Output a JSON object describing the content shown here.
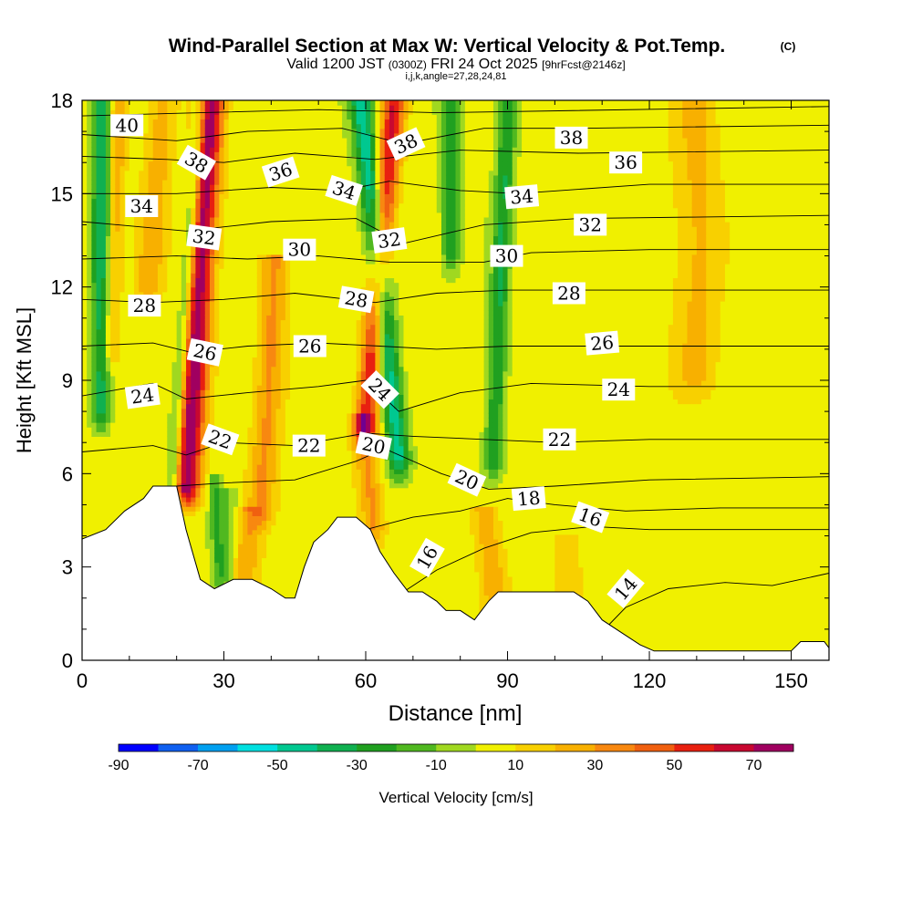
{
  "chart_data": {
    "type": "heatmap",
    "title": "Wind-Parallel Section at Max W: Vertical Velocity & Pot.Temp.",
    "title_mark": "(C)",
    "subtitle_main": "Valid 1200 JST",
    "subtitle_utc": "(0300Z)",
    "subtitle_date": "FRI 24 Oct 2025",
    "subtitle_fcst": "[9hrFcst@2146z]",
    "subtitle_params": "i,j,k,angle=27,28,24,81",
    "xlabel": "Distance [nm]",
    "ylabel": "Height [Kft MSL]",
    "xlim": [
      0,
      158
    ],
    "ylim": [
      0,
      18
    ],
    "x_ticks": [
      0,
      30,
      60,
      90,
      120,
      150
    ],
    "y_ticks": [
      0,
      3,
      6,
      9,
      12,
      15,
      18
    ],
    "colorbar": {
      "label": "Vertical Velocity [cm/s]",
      "tick_labels": [
        "-90",
        "-70",
        "-50",
        "-30",
        "-10",
        "10",
        "30",
        "50",
        "70"
      ],
      "bounds": [
        -90,
        -80,
        -70,
        -60,
        -50,
        -40,
        -30,
        -20,
        -10,
        0,
        10,
        20,
        30,
        40,
        50,
        60,
        70,
        80
      ],
      "colors": [
        "#0000ff",
        "#1060f0",
        "#00a0f0",
        "#00e0e0",
        "#00c890",
        "#10b050",
        "#20a020",
        "#50b820",
        "#a0d820",
        "#f0f000",
        "#f8d000",
        "#f8b000",
        "#f88810",
        "#f06010",
        "#e82010",
        "#c80830",
        "#a00060",
        "#700090"
      ]
    },
    "terrain": [
      [
        0,
        3.9
      ],
      [
        5,
        4.2
      ],
      [
        9,
        4.8
      ],
      [
        13,
        5.2
      ],
      [
        15,
        5.6
      ],
      [
        20,
        5.6
      ],
      [
        22,
        4.2
      ],
      [
        25,
        2.6
      ],
      [
        28,
        2.3
      ],
      [
        32,
        2.6
      ],
      [
        36,
        2.6
      ],
      [
        40,
        2.3
      ],
      [
        43,
        2.0
      ],
      [
        45,
        2.0
      ],
      [
        47,
        3.0
      ],
      [
        49,
        3.8
      ],
      [
        52,
        4.2
      ],
      [
        54,
        4.6
      ],
      [
        58,
        4.6
      ],
      [
        61,
        4.2
      ],
      [
        63,
        3.5
      ],
      [
        66,
        2.8
      ],
      [
        69,
        2.2
      ],
      [
        72,
        2.2
      ],
      [
        75,
        1.9
      ],
      [
        77,
        1.6
      ],
      [
        80,
        1.6
      ],
      [
        83,
        1.3
      ],
      [
        86,
        1.9
      ],
      [
        88,
        2.2
      ],
      [
        92,
        2.2
      ],
      [
        98,
        2.2
      ],
      [
        104,
        2.2
      ],
      [
        107,
        1.9
      ],
      [
        110,
        1.3
      ],
      [
        114,
        0.9
      ],
      [
        118,
        0.5
      ],
      [
        121,
        0.3
      ],
      [
        132,
        0.3
      ],
      [
        143,
        0.3
      ],
      [
        150,
        0.3
      ],
      [
        152,
        0.6
      ],
      [
        157,
        0.6
      ],
      [
        158,
        0.4
      ]
    ],
    "updraft_bands": [
      {
        "peak": 75,
        "half_width": 3.0,
        "x_top": 27,
        "x_bottom": 22,
        "z_top": 18,
        "z_bottom": 5.5
      },
      {
        "peak": 55,
        "half_width": 2.4,
        "x_top": 66,
        "x_bottom": 60,
        "z_top": 18,
        "z_bottom": 7.5
      },
      {
        "peak": 28,
        "half_width": 2.5,
        "x_top": 59,
        "x_bottom": 62,
        "z_top": 8,
        "z_bottom": 4.2
      },
      {
        "peak": 28,
        "half_width": 3.0,
        "x_top": 41,
        "x_bottom": 38,
        "z_top": 13,
        "z_bottom": 5
      },
      {
        "peak": 24,
        "half_width": 3.0,
        "x_top": 85,
        "x_bottom": 88,
        "z_top": 5,
        "z_bottom": 1.5
      },
      {
        "peak": 22,
        "half_width": 3.0,
        "x_top": 36,
        "x_bottom": 34,
        "z_top": 5,
        "z_bottom": 2.3
      },
      {
        "peak": 22,
        "half_width": 1.8,
        "x_top": 8,
        "x_bottom": 6,
        "z_top": 18,
        "z_bottom": 10
      },
      {
        "peak": 22,
        "half_width": 3.0,
        "x_top": 17,
        "x_bottom": 14,
        "z_top": 18,
        "z_bottom": 12
      },
      {
        "peak": 18,
        "half_width": 5.0,
        "x_top": 130,
        "x_bottom": 130,
        "z_top": 18,
        "z_bottom": 9
      },
      {
        "peak": 15,
        "half_width": 3.0,
        "x_top": 103,
        "x_bottom": 103,
        "z_top": 4,
        "z_bottom": 1.5
      },
      {
        "peak": -40,
        "half_width": 2.0,
        "x_top": 4,
        "x_bottom": 4,
        "z_top": 18,
        "z_bottom": 8
      },
      {
        "peak": -38,
        "half_width": 1.6,
        "x_top": 25,
        "x_bottom": 19,
        "z_top": 18,
        "z_bottom": 5.2
      },
      {
        "peak": -50,
        "half_width": 2.4,
        "x_top": 59,
        "x_bottom": 67,
        "z_top": 18,
        "z_bottom": 6.5
      },
      {
        "peak": -30,
        "half_width": 2.0,
        "x_top": 78,
        "x_bottom": 78,
        "z_top": 18,
        "z_bottom": 13
      },
      {
        "peak": -34,
        "half_width": 2.0,
        "x_top": 90,
        "x_bottom": 87,
        "z_top": 18,
        "z_bottom": 6.5
      },
      {
        "peak": -22,
        "half_width": 1.4,
        "x_top": 28,
        "x_bottom": 29,
        "z_top": 6,
        "z_bottom": 2.8
      },
      {
        "peak": -14,
        "half_width": 2.0,
        "x_top": 31,
        "x_bottom": 31,
        "z_top": 5.5,
        "z_bottom": 2.5
      }
    ],
    "theta_surfaces": [
      {
        "theta": 14,
        "points": [
          [
            108,
            0.6
          ],
          [
            115,
            1.7
          ],
          [
            124,
            2.3
          ],
          [
            136,
            2.5
          ],
          [
            146,
            2.4
          ],
          [
            158,
            2.8
          ]
        ]
      },
      {
        "theta": 16,
        "points": [
          [
            66,
            2.0
          ],
          [
            75,
            2.9
          ],
          [
            85,
            3.6
          ],
          [
            95,
            4.1
          ],
          [
            108,
            4.3
          ],
          [
            120,
            4.2
          ],
          [
            135,
            4.2
          ],
          [
            158,
            4.2
          ]
        ]
      },
      {
        "theta": 18,
        "points": [
          [
            60,
            4.2
          ],
          [
            70,
            4.6
          ],
          [
            80,
            4.8
          ],
          [
            90,
            5.2
          ],
          [
            100,
            5.0
          ],
          [
            115,
            4.8
          ],
          [
            135,
            4.9
          ],
          [
            158,
            4.9
          ]
        ]
      },
      {
        "theta": 20,
        "points": [
          [
            20,
            5.6
          ],
          [
            30,
            5.7
          ],
          [
            45,
            5.8
          ],
          [
            58,
            6.4
          ],
          [
            64,
            6.8
          ],
          [
            76,
            6.0
          ],
          [
            86,
            5.5
          ],
          [
            100,
            5.6
          ],
          [
            120,
            5.8
          ],
          [
            158,
            5.9
          ]
        ]
      },
      {
        "theta": 22,
        "points": [
          [
            0,
            6.7
          ],
          [
            15,
            6.9
          ],
          [
            22,
            6.6
          ],
          [
            30,
            7.0
          ],
          [
            45,
            6.9
          ],
          [
            60,
            7.3
          ],
          [
            70,
            7.2
          ],
          [
            85,
            7.1
          ],
          [
            100,
            7.0
          ],
          [
            120,
            7.1
          ],
          [
            158,
            7.1
          ]
        ]
      },
      {
        "theta": 24,
        "points": [
          [
            0,
            8.5
          ],
          [
            15,
            8.9
          ],
          [
            22,
            8.4
          ],
          [
            35,
            8.6
          ],
          [
            50,
            8.8
          ],
          [
            60,
            9.0
          ],
          [
            67,
            8.0
          ],
          [
            80,
            8.6
          ],
          [
            95,
            8.9
          ],
          [
            120,
            8.8
          ],
          [
            158,
            8.8
          ]
        ]
      },
      {
        "theta": 26,
        "points": [
          [
            0,
            10.1
          ],
          [
            15,
            10.2
          ],
          [
            23,
            9.9
          ],
          [
            35,
            10.1
          ],
          [
            50,
            10.2
          ],
          [
            63,
            10.1
          ],
          [
            75,
            10.0
          ],
          [
            90,
            10.1
          ],
          [
            120,
            10.1
          ],
          [
            158,
            10.1
          ]
        ]
      },
      {
        "theta": 28,
        "points": [
          [
            0,
            11.6
          ],
          [
            15,
            11.5
          ],
          [
            30,
            11.6
          ],
          [
            45,
            11.8
          ],
          [
            62,
            11.5
          ],
          [
            75,
            11.8
          ],
          [
            90,
            11.9
          ],
          [
            120,
            11.9
          ],
          [
            158,
            11.9
          ]
        ]
      },
      {
        "theta": 30,
        "points": [
          [
            0,
            12.9
          ],
          [
            20,
            13.0
          ],
          [
            35,
            12.9
          ],
          [
            50,
            13.0
          ],
          [
            65,
            12.8
          ],
          [
            85,
            12.8
          ],
          [
            95,
            13.1
          ],
          [
            120,
            13.2
          ],
          [
            158,
            13.2
          ]
        ]
      },
      {
        "theta": 32,
        "points": [
          [
            0,
            14.1
          ],
          [
            22,
            13.8
          ],
          [
            40,
            14.1
          ],
          [
            58,
            14.2
          ],
          [
            68,
            13.4
          ],
          [
            85,
            14.0
          ],
          [
            105,
            14.2
          ],
          [
            158,
            14.3
          ]
        ]
      },
      {
        "theta": 34,
        "points": [
          [
            0,
            15.0
          ],
          [
            20,
            15.0
          ],
          [
            40,
            15.2
          ],
          [
            55,
            15.1
          ],
          [
            65,
            15.4
          ],
          [
            80,
            15.1
          ],
          [
            92,
            15.0
          ],
          [
            120,
            15.3
          ],
          [
            158,
            15.3
          ]
        ]
      },
      {
        "theta": 36,
        "points": [
          [
            0,
            16.2
          ],
          [
            18,
            16.1
          ],
          [
            30,
            16.0
          ],
          [
            45,
            16.3
          ],
          [
            62,
            16.1
          ],
          [
            80,
            16.4
          ],
          [
            105,
            16.3
          ],
          [
            158,
            16.4
          ]
        ]
      },
      {
        "theta": 38,
        "points": [
          [
            0,
            16.9
          ],
          [
            20,
            16.7
          ],
          [
            35,
            17.0
          ],
          [
            55,
            17.1
          ],
          [
            68,
            16.6
          ],
          [
            85,
            17.1
          ],
          [
            105,
            17.1
          ],
          [
            158,
            17.2
          ]
        ]
      },
      {
        "theta": 40,
        "points": [
          [
            0,
            17.5
          ],
          [
            25,
            17.6
          ],
          [
            50,
            17.7
          ],
          [
            75,
            17.6
          ],
          [
            158,
            17.8
          ]
        ]
      }
    ],
    "contour_labels": [
      {
        "text": "40",
        "x": 9.5,
        "z": 17.2,
        "angle": 0
      },
      {
        "text": "38",
        "x": 24.2,
        "z": 16.0,
        "angle": 30
      },
      {
        "text": "38",
        "x": 68.5,
        "z": 16.6,
        "angle": -25
      },
      {
        "text": "38",
        "x": 103.5,
        "z": 16.8,
        "angle": 0
      },
      {
        "text": "36",
        "x": 42.0,
        "z": 15.7,
        "angle": -18
      },
      {
        "text": "36",
        "x": 115.0,
        "z": 16.0,
        "angle": 0
      },
      {
        "text": "34",
        "x": 12.6,
        "z": 14.6,
        "angle": 0
      },
      {
        "text": "34",
        "x": 55.4,
        "z": 15.1,
        "angle": 18
      },
      {
        "text": "34",
        "x": 93.0,
        "z": 14.9,
        "angle": -5
      },
      {
        "text": "32",
        "x": 25.8,
        "z": 13.6,
        "angle": 8
      },
      {
        "text": "32",
        "x": 65.0,
        "z": 13.5,
        "angle": -8
      },
      {
        "text": "32",
        "x": 107.5,
        "z": 14.0,
        "angle": 0
      },
      {
        "text": "30",
        "x": 46.0,
        "z": 13.2,
        "angle": 0
      },
      {
        "text": "30",
        "x": 89.8,
        "z": 13.0,
        "angle": 0
      },
      {
        "text": "28",
        "x": 13.2,
        "z": 11.4,
        "angle": 0
      },
      {
        "text": "28",
        "x": 58.0,
        "z": 11.6,
        "angle": 10
      },
      {
        "text": "28",
        "x": 103.0,
        "z": 11.8,
        "angle": 0
      },
      {
        "text": "26",
        "x": 26.0,
        "z": 9.9,
        "angle": 12
      },
      {
        "text": "26",
        "x": 48.2,
        "z": 10.1,
        "angle": 0
      },
      {
        "text": "26",
        "x": 110.0,
        "z": 10.2,
        "angle": -5
      },
      {
        "text": "24",
        "x": 12.8,
        "z": 8.5,
        "angle": -8
      },
      {
        "text": "24",
        "x": 63.0,
        "z": 8.7,
        "angle": 45
      },
      {
        "text": "24",
        "x": 113.5,
        "z": 8.7,
        "angle": 0
      },
      {
        "text": "22",
        "x": 29.2,
        "z": 7.1,
        "angle": 20
      },
      {
        "text": "22",
        "x": 48.0,
        "z": 6.9,
        "angle": 0
      },
      {
        "text": "22",
        "x": 101.0,
        "z": 7.1,
        "angle": 0
      },
      {
        "text": "20",
        "x": 61.7,
        "z": 6.9,
        "angle": 12
      },
      {
        "text": "20",
        "x": 81.4,
        "z": 5.8,
        "angle": 25
      },
      {
        "text": "18",
        "x": 94.5,
        "z": 5.2,
        "angle": -5
      },
      {
        "text": "16",
        "x": 73.0,
        "z": 3.3,
        "angle": -60
      },
      {
        "text": "16",
        "x": 107.5,
        "z": 4.6,
        "angle": 20
      },
      {
        "text": "14",
        "x": 115.0,
        "z": 2.3,
        "angle": -50
      }
    ]
  }
}
